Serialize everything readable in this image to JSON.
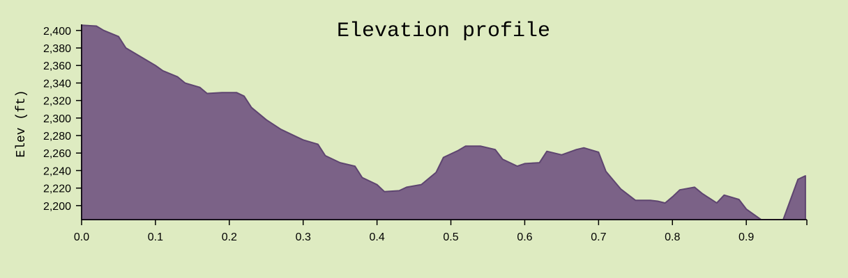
{
  "chart_data": {
    "type": "area",
    "title": "Elevation profile",
    "xlabel": "",
    "ylabel": "Elev (ft)",
    "xlim": [
      0,
      0.982
    ],
    "ylim": [
      2184,
      2407
    ],
    "grid": false,
    "colors": {
      "background": "#deebc1",
      "fill": "#7b6287",
      "stroke": "#5e4570"
    },
    "x_ticks": [
      "0.0",
      "0.1",
      "0.2",
      "0.3",
      "0.4",
      "0.5",
      "0.6",
      "0.7",
      "0.8",
      "0.9"
    ],
    "y_ticks": [
      "2,200",
      "2,220",
      "2,240",
      "2,260",
      "2,280",
      "2,300",
      "2,320",
      "2,340",
      "2,360",
      "2,380",
      "2,400"
    ],
    "x": [
      0,
      0.02,
      0.03,
      0.05,
      0.06,
      0.08,
      0.1,
      0.11,
      0.13,
      0.14,
      0.16,
      0.17,
      0.19,
      0.21,
      0.22,
      0.23,
      0.25,
      0.27,
      0.29,
      0.3,
      0.32,
      0.33,
      0.35,
      0.37,
      0.38,
      0.4,
      0.41,
      0.43,
      0.44,
      0.46,
      0.48,
      0.49,
      0.51,
      0.52,
      0.54,
      0.56,
      0.57,
      0.59,
      0.6,
      0.62,
      0.63,
      0.65,
      0.67,
      0.68,
      0.7,
      0.71,
      0.73,
      0.75,
      0.77,
      0.78,
      0.79,
      0.8,
      0.81,
      0.83,
      0.84,
      0.86,
      0.87,
      0.89,
      0.9,
      0.92,
      0.95,
      0.97,
      0.98
    ],
    "series": [
      {
        "values": [
          2406,
          2405,
          2400,
          2393,
          2380,
          2370,
          2360,
          2354,
          2347,
          2340,
          2335,
          2328,
          2329,
          2329,
          2325,
          2312,
          2298,
          2287,
          2279,
          2275,
          2270,
          2257,
          2249,
          2245,
          2232,
          2224,
          2216,
          2217,
          2221,
          2224,
          2238,
          2255,
          2263,
          2268,
          2268,
          2264,
          2253,
          2245,
          2248,
          2249,
          2262,
          2258,
          2264,
          2266,
          2261,
          2239,
          2219,
          2206,
          2206,
          2205,
          2203,
          2210,
          2218,
          2221,
          2214,
          2203,
          2212,
          2207,
          2196,
          2184,
          2184,
          2230,
          2234
        ]
      }
    ]
  }
}
